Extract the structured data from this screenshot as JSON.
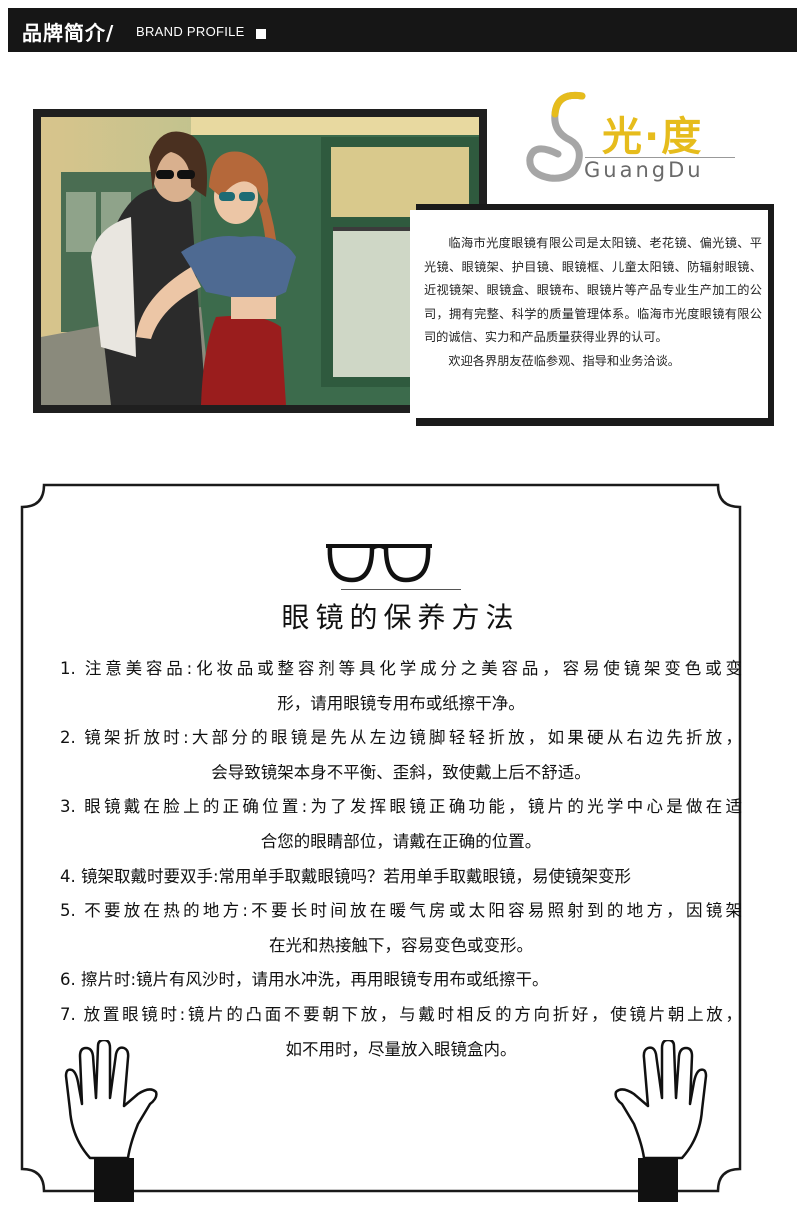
{
  "header": {
    "title": "品牌简介/",
    "subtitle": "BRAND PROFILE"
  },
  "logo": {
    "brand_cn": "光·度",
    "brand_en": "GuangDu"
  },
  "intro": {
    "paragraphs": [
      "临海市光度眼镜有限公司是太阳镜、老花镜、偏光镜、平光镜、眼镜架、护目镜、眼镜框、儿童太阳镜、防辐射眼镜、近视镜架、眼镜盒、眼镜布、眼镜片等产品专业生产加工的公司，拥有完整、科学的质量管理体系。临海市光度眼镜有限公司的诚信、实力和产品质量获得业界的认可。",
      "欢迎各界朋友莅临参观、指导和业务洽谈。"
    ]
  },
  "care": {
    "title": "眼镜的保养方法",
    "items": [
      {
        "line1": "1. 注意美容品:化妆品或整容剂等具化学成分之美容品，容易使镜架变色或变",
        "line2": "形，请用眼镜专用布或纸擦干净。"
      },
      {
        "line1": "2. 镜架折放时:大部分的眼镜是先从左边镜脚轻轻折放，如果硬从右边先折放，",
        "line2": "会导致镜架本身不平衡、歪斜，致使戴上后不舒适。"
      },
      {
        "line1": "3. 眼镜戴在脸上的正确位置:为了发挥眼镜正确功能，镜片的光学中心是做在适",
        "line2": "合您的眼睛部位，请戴在正确的位置。"
      },
      {
        "line1": "4. 镜架取戴时要双手:常用单手取戴眼镜吗？若用单手取戴眼镜，易使镜架变形",
        "line2": ""
      },
      {
        "line1": "5. 不要放在热的地方:不要长时间放在暖气房或太阳容易照射到的地方，因镜架",
        "line2": "在光和热接触下，容易变色或变形。"
      },
      {
        "line1": "6. 擦片时:镜片有风沙时，请用水冲洗，再用眼镜专用布或纸擦干。",
        "line2": ""
      },
      {
        "line1": "7. 放置眼镜时:镜片的凸面不要朝下放，与戴时相反的方向折好，使镜片朝上放，",
        "line2": "如不用时，尽量放入眼镜盒内。"
      }
    ]
  },
  "colors": {
    "header_bg": "#161616",
    "logo_gold": "#e6bc1c",
    "train_green": "#3c6b4c"
  }
}
